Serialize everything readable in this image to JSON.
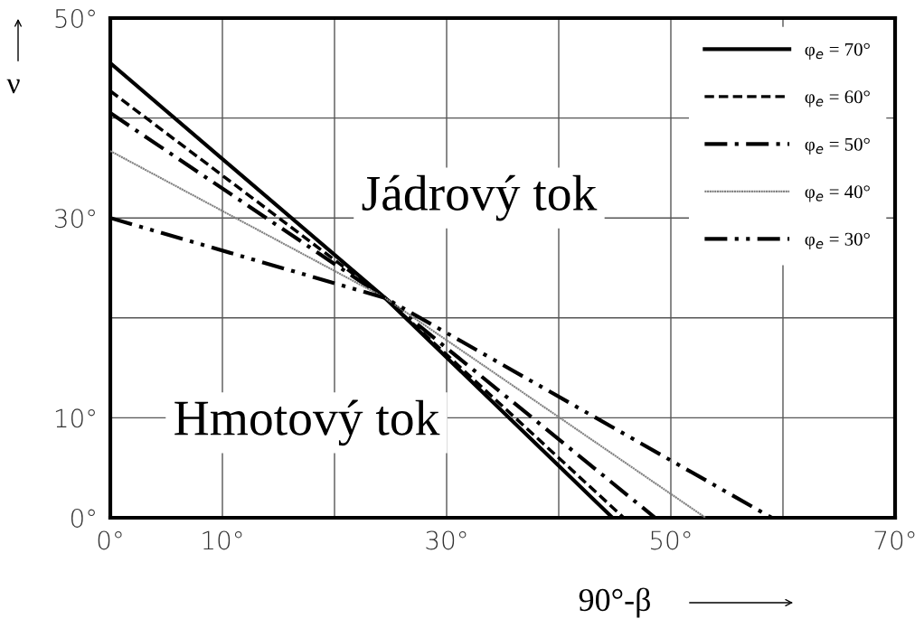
{
  "chart_data": {
    "type": "line",
    "xlabel": "90°-β",
    "ylabel": "ν",
    "annotations": [
      "Jádrový tok",
      "Hmotový tok"
    ],
    "xlim": [
      0,
      70
    ],
    "ylim": [
      0,
      50
    ],
    "xticks": [
      {
        "value": 0,
        "label": "0°"
      },
      {
        "value": 10,
        "label": "10°"
      },
      {
        "value": 20,
        "label": null
      },
      {
        "value": 30,
        "label": "30°"
      },
      {
        "value": 40,
        "label": null
      },
      {
        "value": 50,
        "label": "50°"
      },
      {
        "value": 60,
        "label": null
      },
      {
        "value": 70,
        "label": "70°"
      }
    ],
    "yticks": [
      {
        "value": 0,
        "label": "0°"
      },
      {
        "value": 10,
        "label": "10°"
      },
      {
        "value": 20,
        "label": null
      },
      {
        "value": 30,
        "label": "30°"
      },
      {
        "value": 40,
        "label": null
      },
      {
        "value": 50,
        "label": "50°"
      }
    ],
    "grid": true,
    "legend": "top right",
    "series": [
      {
        "name": "φ$_{e}$ = 70°",
        "color": "#000000",
        "line_style": "solid",
        "x": [
          0,
          24.5,
          44.8
        ],
        "values": [
          45.5,
          22,
          0
        ]
      },
      {
        "name": "φ$_{e}$ = 60°",
        "color": "#000000",
        "line_style": "dashed",
        "x": [
          0,
          24.5,
          45.8
        ],
        "values": [
          42.7,
          22,
          0
        ]
      },
      {
        "name": "φ$_{e}$ = 50°",
        "color": "#000000",
        "line_style": "dashdot",
        "x": [
          0,
          24.5,
          48.6
        ],
        "values": [
          40.5,
          22,
          0
        ]
      },
      {
        "name": "φ$_{e}$ = 40°",
        "color": "#808080",
        "line_style": "dotted",
        "x": [
          0,
          24.5,
          53.1
        ],
        "values": [
          36.7,
          22,
          0
        ]
      },
      {
        "name": "φ$_{e}$ = 30°",
        "color": "#000000",
        "line_style": "dashdotdot",
        "x": [
          0,
          24.5,
          59.0
        ],
        "values": [
          30,
          22,
          0
        ]
      }
    ]
  }
}
